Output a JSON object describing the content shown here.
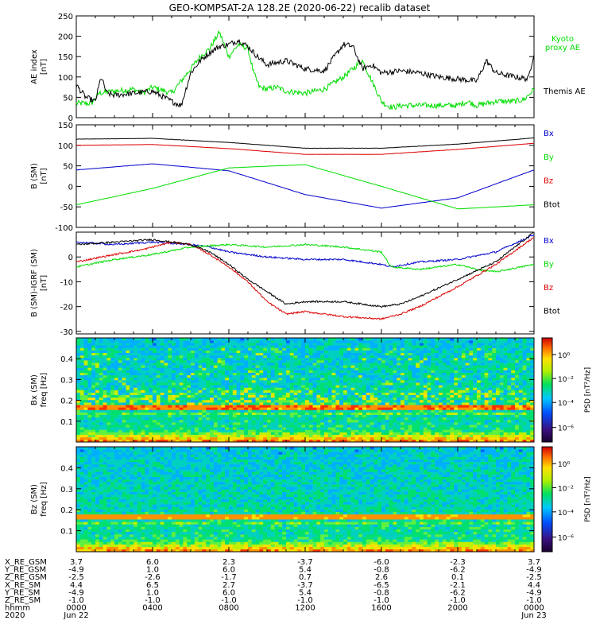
{
  "chart_data": {
    "title": "GEO-KOMPSAT-2A 128.2E (2020-06-22) recalib dataset",
    "x_axis": {
      "range_hours": [
        0,
        24
      ],
      "ticks": [
        "0000",
        "0400",
        "0800",
        "1200",
        "1600",
        "2000",
        "0000"
      ],
      "dates": [
        "Jun 22",
        "Jun 23"
      ]
    },
    "panels": [
      {
        "type": "line",
        "ylabel_top": "AE index",
        "ylabel_bottom": "[nT]",
        "ylim": [
          0,
          250
        ],
        "yticks": [
          "0",
          "50",
          "100",
          "150",
          "200",
          "250"
        ],
        "series": [
          {
            "name": "Kyoto proxy AE",
            "color": "#00dd00",
            "x": [
              0,
              0.8,
              1.2,
              2,
              3,
              3.5,
              4,
              5,
              5.5,
              6,
              6.5,
              7,
              7.5,
              8,
              8.5,
              9,
              9.3,
              9.6,
              10,
              10.5,
              11,
              12,
              13,
              14,
              14.5,
              15,
              15.5,
              16,
              16.3,
              16.6,
              17,
              18,
              19,
              20,
              20.5,
              21,
              22,
              23,
              23.5,
              24
            ],
            "values": [
              35,
              35,
              60,
              65,
              70,
              60,
              75,
              60,
              90,
              120,
              150,
              170,
              210,
              150,
              180,
              170,
              110,
              75,
              70,
              75,
              65,
              60,
              70,
              100,
              120,
              140,
              90,
              40,
              30,
              25,
              30,
              30,
              30,
              30,
              40,
              30,
              40,
              40,
              45,
              70
            ]
          },
          {
            "name": "Themis AE",
            "color": "#000000",
            "x": [
              0,
              0.5,
              1,
              1.3,
              1.6,
              2,
              3,
              4,
              5,
              5.5,
              6,
              6.5,
              7,
              7.5,
              8,
              8.5,
              9,
              9.5,
              10,
              11,
              12,
              13,
              14,
              14.5,
              15,
              15.5,
              16,
              17,
              18,
              19,
              20,
              21,
              21.5,
              22,
              23,
              23.7,
              24
            ],
            "values": [
              80,
              50,
              40,
              100,
              60,
              55,
              60,
              65,
              40,
              30,
              110,
              140,
              160,
              175,
              180,
              190,
              175,
              150,
              130,
              140,
              120,
              115,
              180,
              175,
              120,
              130,
              110,
              115,
              110,
              100,
              95,
              90,
              140,
              110,
              100,
              95,
              160
            ]
          }
        ],
        "legend": [
          "Kyoto",
          "proxy AE",
          "Themis AE"
        ]
      },
      {
        "type": "line",
        "ylabel_top": "B (SM)",
        "ylabel_bottom": "[nT]",
        "ylim": [
          -100,
          150
        ],
        "yticks": [
          "-100",
          "-50",
          "0",
          "50",
          "100",
          "150"
        ],
        "series": [
          {
            "name": "Bx",
            "color": "#0000cc",
            "x": [
              0,
              4,
              8,
              12,
              16,
              20,
              24
            ],
            "values": [
              40,
              55,
              38,
              -20,
              -53,
              -28,
              40
            ]
          },
          {
            "name": "By",
            "color": "#00dd00",
            "x": [
              0,
              4,
              8,
              12,
              16,
              20,
              24
            ],
            "values": [
              -45,
              -5,
              45,
              53,
              0,
              -55,
              -45
            ]
          },
          {
            "name": "Bz",
            "color": "#dd0000",
            "x": [
              0,
              4,
              8,
              12,
              16,
              20,
              24
            ],
            "values": [
              100,
              102,
              92,
              78,
              78,
              90,
              105
            ]
          },
          {
            "name": "Btot",
            "color": "#000000",
            "x": [
              0,
              4,
              8,
              12,
              16,
              20,
              24
            ],
            "values": [
              115,
              117,
              107,
              93,
              93,
              103,
              118
            ]
          }
        ],
        "legend": [
          "Bx",
          "By",
          "Bz",
          "Btot"
        ]
      },
      {
        "type": "line",
        "ylabel_top": "B (SM)-IGRF (SM)",
        "ylabel_bottom": "[nT]",
        "ylim": [
          -31,
          10
        ],
        "yticks": [
          "-30",
          "-20",
          "-10",
          "0"
        ],
        "series": [
          {
            "name": "Bx",
            "color": "#0000cc",
            "x": [
              0,
              2,
              4,
              6,
              7,
              8,
              10,
              12,
              14,
              16,
              16.5,
              18,
              20,
              22,
              24
            ],
            "values": [
              6,
              5,
              6,
              5,
              4,
              2,
              0,
              -1,
              -1,
              -3,
              -4,
              -2,
              -1,
              2,
              9
            ]
          },
          {
            "name": "By",
            "color": "#00dd00",
            "x": [
              0,
              2,
              4,
              6,
              8,
              10,
              12,
              14,
              16,
              16.5,
              18,
              20,
              21,
              22,
              24
            ],
            "values": [
              -4,
              -1,
              1,
              4,
              5,
              4,
              5,
              4,
              2,
              -4,
              -5,
              -3,
              -5,
              -6,
              -3
            ]
          },
          {
            "name": "Bz",
            "color": "#dd0000",
            "x": [
              0,
              2,
              3.5,
              5,
              6,
              7,
              8,
              9,
              10,
              11,
              12,
              14,
              16,
              17,
              18,
              20,
              22,
              24
            ],
            "values": [
              -2,
              1,
              3,
              6,
              5,
              1,
              -4,
              -10,
              -18,
              -23,
              -22,
              -24,
              -25,
              -23,
              -20,
              -12,
              -3,
              8
            ]
          },
          {
            "name": "Btot",
            "color": "#000000",
            "x": [
              0,
              2,
              4,
              5,
              6,
              7,
              8,
              9,
              10,
              11,
              12,
              14,
              16,
              17,
              18,
              20,
              22,
              24
            ],
            "values": [
              5,
              6,
              7,
              6,
              5,
              2,
              -3,
              -9,
              -14,
              -19,
              -18,
              -18,
              -20,
              -19,
              -16,
              -9,
              -2,
              10
            ]
          }
        ],
        "legend": [
          "Bx",
          "By",
          "Bz",
          "Btot"
        ]
      },
      {
        "type": "heatmap",
        "ylabel_top": "Bx (SM)",
        "ylabel_bottom": "freq [Hz]",
        "ylim": [
          0,
          0.5
        ],
        "yticks": [
          "0.1",
          "0.2",
          "0.3",
          "0.4"
        ]
      },
      {
        "type": "heatmap",
        "ylabel_top": "Bz (SM)",
        "ylabel_bottom": "freq [Hz]",
        "ylim": [
          0,
          0.5
        ],
        "yticks": [
          "0.1",
          "0.2",
          "0.3",
          "0.4"
        ]
      }
    ],
    "colorbar": {
      "label": "PSD [nT²/Hz]",
      "ticks": [
        "10⁰",
        "10⁻²",
        "10⁻⁴",
        "10⁻⁶"
      ]
    },
    "ephemeris": {
      "rows": [
        {
          "label": "X_RE_GSM",
          "values": [
            "3.7",
            "6.0",
            "2.3",
            "-3.7",
            "-6.0",
            "-2.3",
            "3.7"
          ]
        },
        {
          "label": "Y_RE_GSM",
          "values": [
            "-4.9",
            "1.0",
            "6.0",
            "5.4",
            "-0.8",
            "-6.2",
            "-4.9"
          ]
        },
        {
          "label": "Z_RE_GSM",
          "values": [
            "-2.5",
            "-2.6",
            "-1.7",
            "0.7",
            "2.6",
            "0.1",
            "-2.5"
          ]
        },
        {
          "label": "X_RE_SM",
          "values": [
            "4.4",
            "6.5",
            "2.7",
            "-3.7",
            "-6.5",
            "-2.1",
            "4.4"
          ]
        },
        {
          "label": "Y_RE_SM",
          "values": [
            "-4.9",
            "1.0",
            "6.0",
            "5.4",
            "-0.8",
            "-6.2",
            "-4.9"
          ]
        },
        {
          "label": "Z_RE_SM",
          "values": [
            "-1.0",
            "-1.0",
            "-1.0",
            "-1.0",
            "-1.0",
            "-1.0",
            "-1.0"
          ]
        },
        {
          "label": "hhmm",
          "values": [
            "0000",
            "0400",
            "0800",
            "1200",
            "1600",
            "2000",
            "0000"
          ]
        },
        {
          "label": "2020",
          "values": [
            "Jun 22",
            "",
            "",
            "",
            "",
            "",
            "Jun 23"
          ]
        }
      ]
    }
  }
}
